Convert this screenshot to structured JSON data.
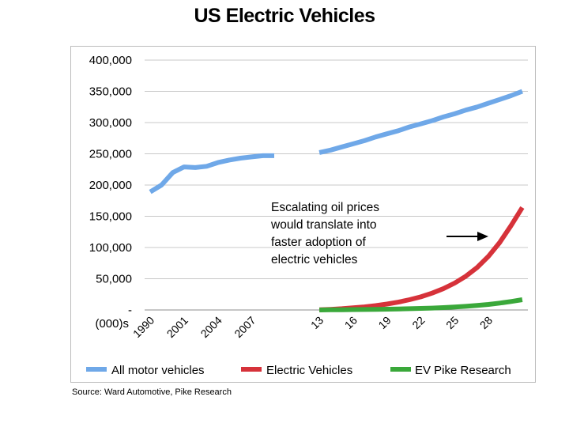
{
  "title": "US Electric Vehicles",
  "source": "Source: Ward Automotive, Pike Research",
  "chart_data": {
    "type": "line",
    "title": "US Electric Vehicles",
    "xlabel": "",
    "ylabel": "(000)s",
    "ylim": [
      0,
      400000
    ],
    "yticks": [
      "-",
      "50,000",
      "100,000",
      "150,000",
      "200,000",
      "250,000",
      "300,000",
      "350,000",
      "400,000"
    ],
    "ytick_values": [
      0,
      50000,
      100000,
      150000,
      200000,
      250000,
      300000,
      350000,
      400000
    ],
    "xtick_labels": [
      {
        "label": "1990",
        "x": 0
      },
      {
        "label": "2001",
        "x": 3
      },
      {
        "label": "2004",
        "x": 6
      },
      {
        "label": "2007",
        "x": 9
      },
      {
        "label": "13",
        "x": 15
      },
      {
        "label": "16",
        "x": 18
      },
      {
        "label": "19",
        "x": 21
      },
      {
        "label": "22",
        "x": 24
      },
      {
        "label": "25",
        "x": 27
      },
      {
        "label": "28",
        "x": 30
      }
    ],
    "x_range": [
      -0.5,
      33.5
    ],
    "series": [
      {
        "name": "All motor vehicles",
        "color": "#6fa8e8",
        "segments": [
          [
            [
              0,
              189000
            ],
            [
              1,
              200000
            ],
            [
              2,
              220000
            ],
            [
              3,
              229000
            ],
            [
              4,
              228000
            ],
            [
              5,
              230000
            ],
            [
              6,
              236000
            ],
            [
              7,
              240000
            ],
            [
              8,
              243000
            ],
            [
              9,
              245000
            ],
            [
              10,
              247000
            ],
            [
              11,
              247000
            ]
          ],
          [
            [
              15,
              252000
            ],
            [
              16,
              256000
            ],
            [
              17,
              261000
            ],
            [
              18,
              266000
            ],
            [
              19,
              271000
            ],
            [
              20,
              277000
            ],
            [
              21,
              282000
            ],
            [
              22,
              287000
            ],
            [
              23,
              293000
            ],
            [
              24,
              298000
            ],
            [
              25,
              303000
            ],
            [
              26,
              309000
            ],
            [
              27,
              314000
            ],
            [
              28,
              320000
            ],
            [
              29,
              325000
            ],
            [
              30,
              331000
            ],
            [
              31,
              337000
            ],
            [
              32,
              343000
            ],
            [
              33,
              350000
            ]
          ]
        ]
      },
      {
        "name": "Electric Vehicles",
        "color": "#d6323a",
        "segments": [
          [
            [
              15,
              200
            ],
            [
              16,
              1000
            ],
            [
              17,
              2000
            ],
            [
              18,
              3500
            ],
            [
              19,
              5000
            ],
            [
              20,
              7000
            ],
            [
              21,
              9500
            ],
            [
              22,
              12500
            ],
            [
              23,
              16500
            ],
            [
              24,
              21000
            ],
            [
              25,
              27000
            ],
            [
              26,
              34000
            ],
            [
              27,
              43000
            ],
            [
              28,
              54000
            ],
            [
              29,
              68000
            ],
            [
              30,
              86000
            ],
            [
              31,
              108000
            ],
            [
              32,
              135000
            ],
            [
              33,
              164000
            ]
          ]
        ]
      },
      {
        "name": "EV Pike Research",
        "color": "#3aa83a",
        "segments": [
          [
            [
              15,
              0
            ],
            [
              16,
              200
            ],
            [
              17,
              400
            ],
            [
              18,
              600
            ],
            [
              19,
              800
            ],
            [
              20,
              1000
            ],
            [
              21,
              1300
            ],
            [
              22,
              1600
            ],
            [
              23,
              2000
            ],
            [
              24,
              2500
            ],
            [
              25,
              3100
            ],
            [
              26,
              3800
            ],
            [
              27,
              4700
            ],
            [
              28,
              5800
            ],
            [
              29,
              7200
            ],
            [
              30,
              8900
            ],
            [
              31,
              11000
            ],
            [
              32,
              13500
            ],
            [
              33,
              16500
            ]
          ]
        ]
      }
    ],
    "annotation": {
      "lines": [
        "Escalating oil prices",
        "would translate into",
        "faster adoption of",
        "electric vehicles"
      ]
    },
    "legend_position": "bottom",
    "grid": true
  }
}
